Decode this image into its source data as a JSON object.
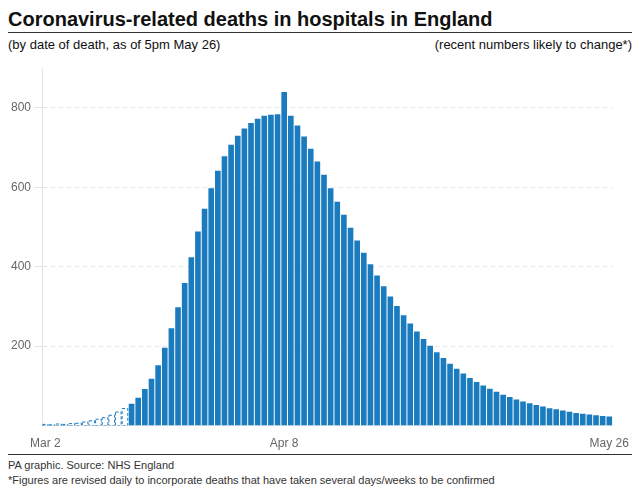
{
  "chart_data": {
    "type": "bar",
    "title": "Coronavirus-related deaths in hospitals in England",
    "subtitle": [
      "(by date of death, as of 5pm May 26)",
      "(recent numbers likely to change*)"
    ],
    "annotations": [
      "PA graphic. Source: NHS England",
      "*Figures are revised daily to incorporate deaths that have taken several days/weeks to be confirmed"
    ],
    "categories": [
      "Mar 2",
      null,
      null,
      null,
      null,
      null,
      null,
      null,
      null,
      null,
      null,
      null,
      null,
      null,
      null,
      null,
      null,
      null,
      null,
      null,
      null,
      null,
      null,
      null,
      null,
      null,
      null,
      null,
      null,
      null,
      null,
      null,
      null,
      null,
      null,
      null,
      "Apr 8",
      null,
      null,
      null,
      null,
      null,
      null,
      null,
      null,
      null,
      null,
      null,
      null,
      null,
      null,
      null,
      null,
      null,
      null,
      null,
      null,
      null,
      null,
      null,
      null,
      null,
      null,
      null,
      null,
      null,
      null,
      null,
      null,
      null,
      null,
      null,
      null,
      null,
      null,
      null,
      null,
      null,
      null,
      null,
      null,
      null,
      null,
      null,
      null,
      "May 26"
    ],
    "series": [
      {
        "color": "#1a7bbf",
        "line_style": "dashed",
        "values": [
          3,
          2,
          4,
          3,
          5,
          6,
          9,
          12,
          16,
          20,
          26,
          34,
          43,
          null,
          null,
          null,
          null,
          null,
          null,
          null,
          null,
          null,
          null,
          null,
          null,
          null,
          null,
          null,
          null,
          null,
          null,
          null,
          null,
          null,
          null,
          null,
          null,
          null,
          null,
          null,
          null,
          null,
          null,
          null,
          null,
          null,
          null,
          null,
          null,
          null,
          null,
          null,
          null,
          null,
          null,
          null,
          null,
          null,
          null,
          null,
          null,
          null,
          null,
          null,
          null,
          null,
          null,
          null,
          null,
          null,
          null,
          null,
          null,
          null,
          null,
          null,
          null,
          null,
          null,
          null,
          null,
          null,
          null,
          null,
          null,
          null
        ]
      },
      {
        "color": "#1a7bbf",
        "line_style": "solid",
        "values": [
          null,
          null,
          null,
          null,
          null,
          null,
          null,
          null,
          null,
          null,
          null,
          null,
          null,
          55,
          70,
          92,
          118,
          152,
          196,
          245,
          298,
          359,
          424,
          489,
          546,
          598,
          642,
          678,
          707,
          730,
          748,
          762,
          773,
          780,
          783,
          784,
          840,
          780,
          756,
          728,
          697,
          665,
          632,
          598,
          564,
          531,
          498,
          466,
          435,
          406,
          378,
          351,
          325,
          301,
          278,
          257,
          237,
          218,
          201,
          185,
          170,
          156,
          143,
          131,
          120,
          110,
          101,
          93,
          85,
          78,
          72,
          66,
          61,
          56,
          52,
          48,
          44,
          41,
          38,
          35,
          32,
          30,
          28,
          26,
          24,
          23
        ]
      }
    ],
    "ylim": [
      0,
      900
    ],
    "yticks": [
      200,
      400,
      600,
      800
    ],
    "grid": true
  }
}
